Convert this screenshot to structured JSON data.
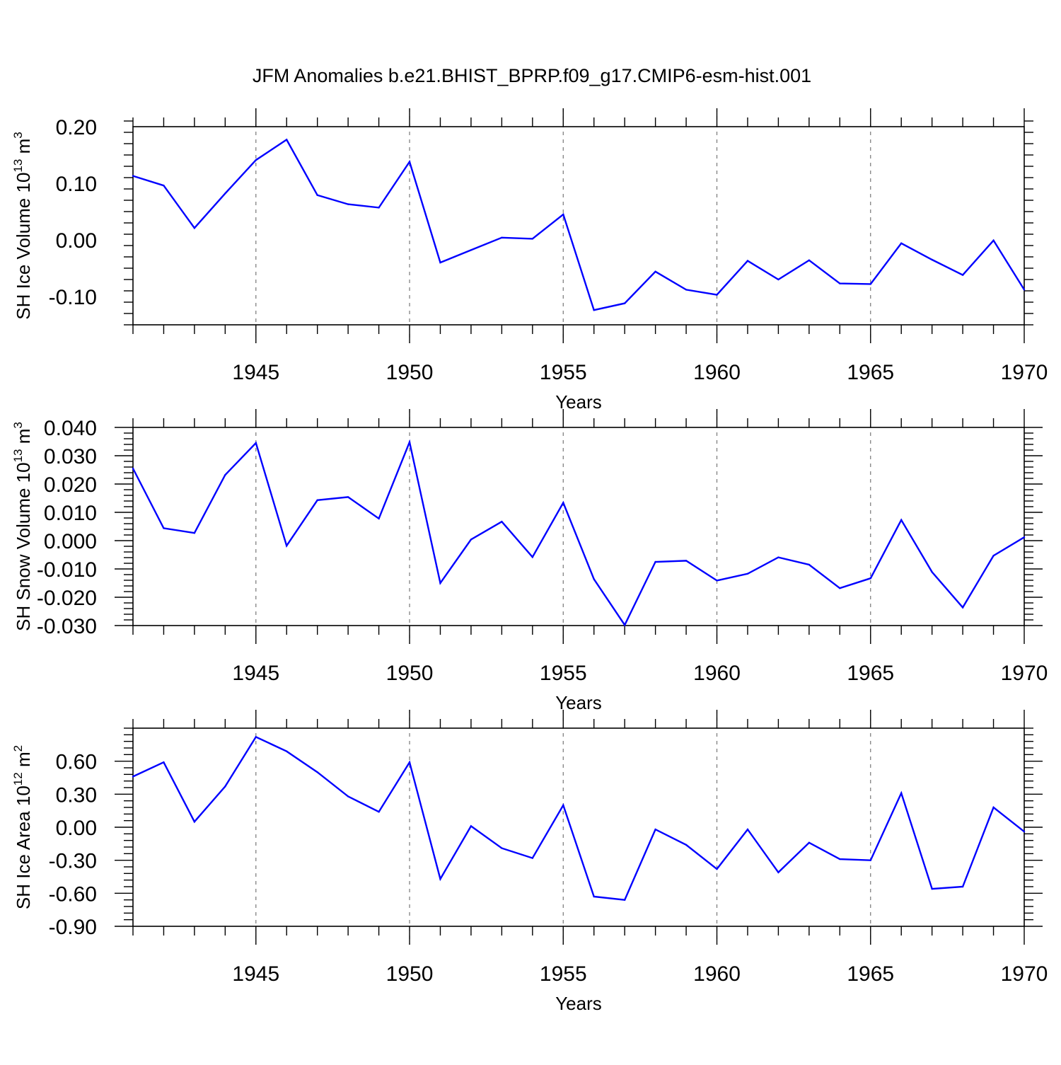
{
  "title": "JFM Anomalies b.e21.BHIST_BPRP.f09_g17.CMIP6-esm-hist.001",
  "colors": {
    "line": "#0000ff",
    "axis": "#000000",
    "grid": "#777777"
  },
  "chart_data": [
    {
      "type": "line",
      "ylabel": {
        "main": "SH Ice Volume 10",
        "sup": "13",
        "unit": " m",
        "unit_sup": "3"
      },
      "xlabel": "Years",
      "xlim": [
        1941,
        1970
      ],
      "ylim": [
        -0.15,
        0.2
      ],
      "yticks": [
        0.2,
        0.1,
        0.0,
        -0.1
      ],
      "ytick_labels": [
        "0.20",
        "0.10",
        "0.00",
        "-0.10"
      ],
      "xticks": [
        1945,
        1950,
        1955,
        1960,
        1965,
        1970
      ],
      "xtick_labels": [
        "1945",
        "1950",
        "1955",
        "1960",
        "1965",
        "1970"
      ],
      "grid": "dashed vertical at major x ticks",
      "x": [
        1941,
        1942,
        1943,
        1944,
        1945,
        1946,
        1947,
        1948,
        1949,
        1950,
        1951,
        1952,
        1953,
        1954,
        1955,
        1956,
        1957,
        1958,
        1959,
        1960,
        1961,
        1962,
        1963,
        1964,
        1965,
        1966,
        1967,
        1968,
        1969,
        1970
      ],
      "values": [
        0.113,
        0.096,
        0.021,
        0.082,
        0.141,
        0.177,
        0.079,
        0.063,
        0.057,
        0.138,
        -0.04,
        -0.018,
        0.004,
        0.002,
        0.045,
        -0.124,
        -0.112,
        -0.056,
        -0.088,
        -0.097,
        -0.037,
        -0.07,
        -0.036,
        -0.077,
        -0.078,
        -0.006,
        -0.035,
        -0.062,
        -0.001,
        -0.088
      ]
    },
    {
      "type": "line",
      "ylabel": {
        "main": "SH Snow Volume 10",
        "sup": "13",
        "unit": " m",
        "unit_sup": "3"
      },
      "xlabel": "Years",
      "xlim": [
        1941,
        1970
      ],
      "ylim": [
        -0.03,
        0.04
      ],
      "yticks": [
        0.04,
        0.03,
        0.02,
        0.01,
        0.0,
        -0.01,
        -0.02,
        -0.03
      ],
      "ytick_labels": [
        "0.040",
        "0.030",
        "0.020",
        "0.010",
        "0.000",
        "-0.010",
        "-0.020",
        "-0.030"
      ],
      "xticks": [
        1945,
        1950,
        1955,
        1960,
        1965,
        1970
      ],
      "xtick_labels": [
        "1945",
        "1950",
        "1955",
        "1960",
        "1965",
        "1970"
      ],
      "grid": "dashed vertical at major x ticks",
      "x": [
        1941,
        1942,
        1943,
        1944,
        1945,
        1946,
        1947,
        1948,
        1949,
        1950,
        1951,
        1952,
        1953,
        1954,
        1955,
        1956,
        1957,
        1958,
        1959,
        1960,
        1961,
        1962,
        1963,
        1964,
        1965,
        1966,
        1967,
        1968,
        1969,
        1970
      ],
      "values": [
        0.0255,
        0.0044,
        0.0027,
        0.0232,
        0.0345,
        -0.0018,
        0.0143,
        0.0154,
        0.0078,
        0.0348,
        -0.015,
        0.0004,
        0.0067,
        -0.0058,
        0.0134,
        -0.0136,
        -0.0298,
        -0.0075,
        -0.0071,
        -0.0141,
        -0.0117,
        -0.0059,
        -0.0085,
        -0.0168,
        -0.0133,
        0.0073,
        -0.0111,
        -0.0236,
        -0.0053,
        0.0012
      ]
    },
    {
      "type": "line",
      "ylabel": {
        "main": "SH Ice Area 10",
        "sup": "12",
        "unit": " m",
        "unit_sup": "2"
      },
      "xlabel": "Years",
      "xlim": [
        1941,
        1970
      ],
      "ylim": [
        -0.9,
        0.9
      ],
      "yticks": [
        0.6,
        0.3,
        0.0,
        -0.3,
        -0.6,
        -0.9
      ],
      "ytick_labels": [
        "0.60",
        "0.30",
        "0.00",
        "-0.30",
        "-0.60",
        "-0.90"
      ],
      "xticks": [
        1945,
        1950,
        1955,
        1960,
        1965,
        1970
      ],
      "xtick_labels": [
        "1945",
        "1950",
        "1955",
        "1960",
        "1965",
        "1970"
      ],
      "grid": "dashed vertical at major x ticks",
      "x": [
        1941,
        1942,
        1943,
        1944,
        1945,
        1946,
        1947,
        1948,
        1949,
        1950,
        1951,
        1952,
        1953,
        1954,
        1955,
        1956,
        1957,
        1958,
        1959,
        1960,
        1961,
        1962,
        1963,
        1964,
        1965,
        1966,
        1967,
        1968,
        1969,
        1970
      ],
      "values": [
        0.46,
        0.59,
        0.05,
        0.37,
        0.82,
        0.69,
        0.5,
        0.28,
        0.14,
        0.59,
        -0.47,
        0.01,
        -0.19,
        -0.28,
        0.2,
        -0.63,
        -0.66,
        -0.02,
        -0.16,
        -0.38,
        -0.02,
        -0.41,
        -0.14,
        -0.29,
        -0.3,
        0.31,
        -0.56,
        -0.54,
        0.18,
        -0.04
      ]
    }
  ]
}
